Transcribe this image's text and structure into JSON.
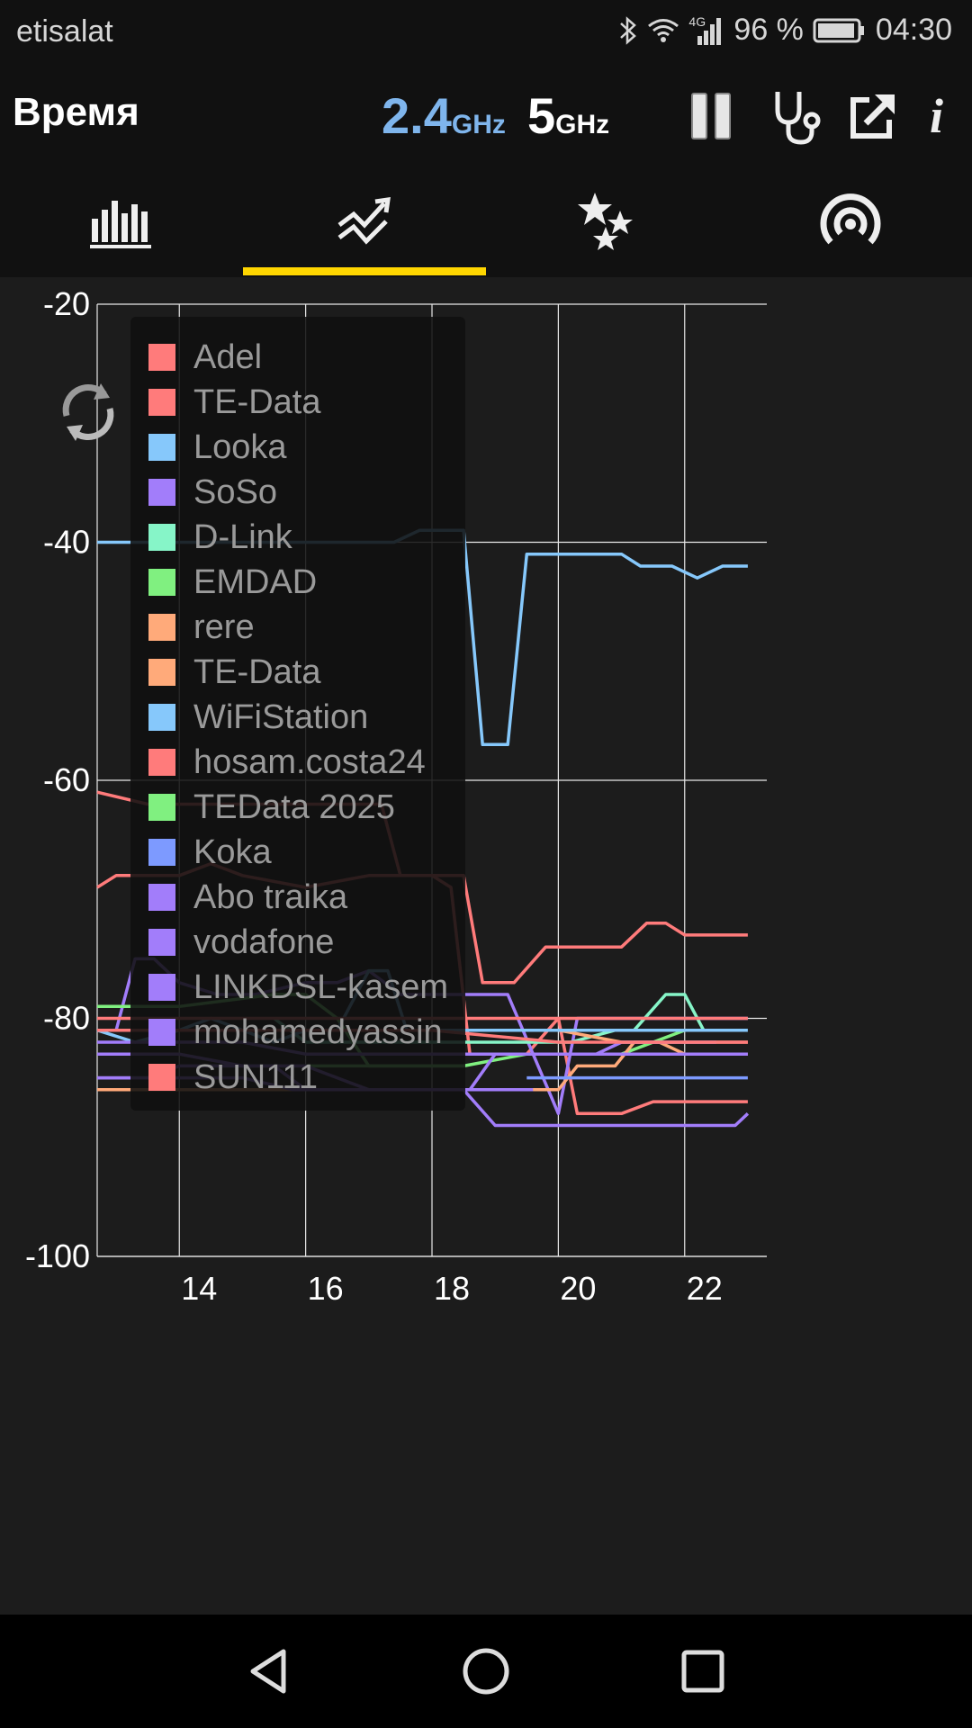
{
  "status_bar": {
    "carrier": "etisalat",
    "network": "4G",
    "battery": "96 %",
    "time": "04:30",
    "icons": [
      "bluetooth-icon",
      "wifi-icon",
      "signal-icon",
      "battery-icon"
    ]
  },
  "app_bar": {
    "title": "Время",
    "band_24_num": "2.4",
    "band_24_unit": "GHz",
    "band_5_num": "5",
    "band_5_unit": "GHz",
    "actions": [
      "pause-icon",
      "stethoscope-icon",
      "share-icon",
      "info-icon"
    ]
  },
  "tabs": [
    {
      "icon": "bar-chart-icon",
      "active": false
    },
    {
      "icon": "time-graph-icon",
      "active": true
    },
    {
      "icon": "stars-icon",
      "active": false
    },
    {
      "icon": "access-point-icon",
      "active": false
    }
  ],
  "chart_data": {
    "type": "line",
    "title": "",
    "xlabel": "",
    "ylabel": "",
    "xlim": [
      12.7,
      23.3
    ],
    "ylim": [
      -100,
      -20
    ],
    "yticks": [
      -20,
      -40,
      -60,
      -80,
      -100
    ],
    "xticks": [
      14,
      16,
      18,
      20,
      22
    ],
    "grid": true,
    "legend": "top-left",
    "series": [
      {
        "name": "Adel",
        "color": "#ff7b7b",
        "x": [
          12.7,
          13.5,
          17.2,
          17.5,
          18.5,
          18.8,
          19.3,
          19.8,
          20.7,
          21.0,
          21.4,
          21.7,
          22.0,
          22.5,
          23.0
        ],
        "y": [
          -61,
          -62,
          -62,
          -68,
          -68,
          -77,
          -77,
          -74,
          -74,
          -74,
          -72,
          -72,
          -73,
          -73,
          -73
        ]
      },
      {
        "name": "TE-Data",
        "color": "#ff7b7b",
        "x": [
          12.7,
          13.0,
          14.0,
          14.5,
          15.0,
          16.0,
          17.0,
          18.0,
          18.3,
          18.6,
          19.0,
          19.5,
          20.0,
          20.3,
          21.0,
          21.5,
          22.0,
          23.0
        ],
        "y": [
          -69,
          -68,
          -68,
          -67,
          -68,
          -69,
          -68,
          -68,
          -69,
          -83,
          -83,
          -83,
          -80,
          -88,
          -88,
          -87,
          -87,
          -87
        ]
      },
      {
        "name": "Looka",
        "color": "#86c8fb",
        "x": [
          12.7,
          14.0,
          14.6,
          17.4,
          17.8,
          18.5,
          18.8,
          19.2,
          19.5,
          20.0,
          21.0,
          21.3,
          21.8,
          22.2,
          22.6,
          23.0
        ],
        "y": [
          -40,
          -40,
          -40,
          -40,
          -39,
          -39,
          -57,
          -57,
          -41,
          -41,
          -41,
          -42,
          -42,
          -43,
          -42,
          -42
        ]
      },
      {
        "name": "SoSo",
        "color": "#a27dfa",
        "x": [
          12.7,
          13.0,
          13.3,
          13.6,
          14.0,
          14.6,
          15.2,
          16.0,
          16.5,
          17.0,
          17.5,
          18.0,
          18.5,
          18.8,
          19.2,
          19.6,
          20.0,
          20.3,
          21.0,
          22.0,
          23.0
        ],
        "y": [
          -81,
          -81,
          -75,
          -75,
          -77,
          -78,
          -78,
          -77,
          -77,
          -76,
          -78,
          -78,
          -78,
          -78,
          -78,
          -83,
          -88,
          -80,
          -80,
          -80,
          -80
        ]
      },
      {
        "name": "D-Link",
        "color": "#86f5c8",
        "x": [
          15.5,
          16.0,
          16.3,
          16.7,
          17.0,
          17.5,
          18.0,
          18.6,
          19.2,
          19.8,
          20.2,
          20.9,
          21.2,
          21.7,
          22.0,
          22.3,
          22.6
        ],
        "y": [
          -80,
          -82,
          -82,
          -82,
          -82,
          -82,
          -82,
          -82,
          -82,
          -82,
          -82,
          -81,
          -81,
          -78,
          -78,
          -81,
          -81
        ]
      },
      {
        "name": "EMDAD",
        "color": "#80f080",
        "x": [
          12.7,
          14.0,
          15.5,
          16.0,
          16.5,
          17.0,
          17.5,
          18.5,
          19.5,
          20.0,
          21.0,
          21.5,
          22.0,
          22.5
        ],
        "y": [
          -79,
          -79,
          -78,
          -78,
          -80,
          -84,
          -84,
          -84,
          -83,
          -83,
          -83,
          -82,
          -81,
          -81
        ]
      },
      {
        "name": "rere",
        "color": "#ffaa7a",
        "x": [
          12.7,
          14.0,
          15.0,
          16.0,
          17.0,
          18.0,
          19.0,
          19.7,
          20.0,
          20.3,
          20.9,
          21.2,
          21.6,
          22.0,
          22.5,
          23.0
        ],
        "y": [
          -86,
          -86,
          -86,
          -86,
          -86,
          -86,
          -86,
          -86,
          -86,
          -84,
          -84,
          -82,
          -82,
          -83,
          -83,
          -83
        ]
      },
      {
        "name": "TE-Data",
        "color": "#ffaa7a",
        "x": [
          12.7,
          15.0,
          16.0,
          17.0,
          18.0,
          19.0,
          19.7,
          20.0,
          21.0,
          22.0,
          23.0
        ],
        "y": [
          -81,
          -81,
          -81,
          -81,
          -81,
          -81,
          -81,
          -81,
          -82,
          -82,
          -82
        ]
      },
      {
        "name": "WiFiStation",
        "color": "#86c8fb",
        "x": [
          12.7,
          13.3,
          14.0,
          14.5,
          15.0,
          15.5,
          16.0,
          16.5,
          17.0,
          17.3,
          17.6,
          18.0,
          18.5,
          19.0,
          20.0,
          20.5,
          21.0,
          22.0,
          23.0
        ],
        "y": [
          -81,
          -82,
          -81,
          -80,
          -81,
          -82,
          -81,
          -81,
          -76,
          -76,
          -81,
          -81,
          -81,
          -81,
          -81,
          -81,
          -81,
          -81,
          -81
        ]
      },
      {
        "name": "hosam.costa24",
        "color": "#ff7b7b",
        "x": [
          12.7,
          15.0,
          16.0,
          17.0,
          18.0,
          19.0,
          20.0,
          21.0,
          22.0,
          23.0
        ],
        "y": [
          -80,
          -80,
          -80,
          -80,
          -80,
          -80,
          -80,
          -80,
          -80,
          -80
        ]
      },
      {
        "name": "TEData 2025",
        "color": "#80f080",
        "x": [
          14.5,
          15.5,
          16.0,
          17.0,
          18.0,
          18.5
        ],
        "y": [
          -84,
          -84,
          -84,
          -84,
          -84,
          -84
        ]
      },
      {
        "name": "Koka",
        "color": "#7d9aff",
        "x": [
          19.5,
          20.0,
          21.0,
          22.0,
          23.0
        ],
        "y": [
          -85,
          -85,
          -85,
          -85,
          -85
        ]
      },
      {
        "name": "Abo traika",
        "color": "#a27dfa",
        "x": [
          12.7,
          13.5,
          14.0,
          15.0,
          15.5,
          16.0,
          16.5,
          17.0,
          17.5,
          18.0,
          18.5,
          19.0,
          20.0,
          21.0,
          22.0,
          22.3,
          22.8,
          23.0
        ],
        "y": [
          -85,
          -85,
          -84,
          -84,
          -84,
          -86,
          -86,
          -86,
          -86,
          -86,
          -86,
          -89,
          -89,
          -89,
          -89,
          -89,
          -89,
          -88
        ]
      },
      {
        "name": "vodafone",
        "color": "#a27dfa",
        "x": [
          12.7,
          13.0,
          14.0,
          15.0,
          16.0,
          17.0,
          18.0,
          19.0,
          20.0,
          21.0,
          22.0,
          23.0
        ],
        "y": [
          -82,
          -82,
          -82,
          -82,
          -83,
          -83,
          -83,
          -83,
          -83,
          -83,
          -83,
          -83
        ]
      },
      {
        "name": "LINKDSL-kasem",
        "color": "#a27dfa",
        "x": [
          12.7,
          14.0,
          15.0,
          15.8,
          16.5,
          17.5,
          18.0,
          18.6,
          19.0,
          19.4,
          20.0,
          20.6,
          21.0,
          21.5,
          22.0,
          22.5
        ],
        "y": [
          -85,
          -85,
          -85,
          -86,
          -86,
          -86,
          -86,
          -86,
          -83,
          -83,
          -83,
          -83,
          -82,
          -82,
          -82,
          -82
        ]
      },
      {
        "name": "mohamedyassin",
        "color": "#a27dfa",
        "x": [
          12.7,
          13.5,
          14.0,
          15.0,
          16.0,
          17.0,
          18.0,
          18.6,
          19.0,
          19.6
        ],
        "y": [
          -83,
          -83,
          -83,
          -84,
          -84,
          -86,
          -86,
          -86,
          -86,
          -86
        ]
      },
      {
        "name": "SUN111",
        "color": "#ff7b7b",
        "x": [
          12.7,
          14.0,
          16.0,
          18.0,
          20.0,
          21.0,
          22.0,
          23.0
        ],
        "y": [
          -81,
          -81,
          -81,
          -81,
          -82,
          -82,
          -82,
          -82
        ]
      }
    ]
  },
  "nav_bar": [
    "back-icon",
    "home-icon",
    "recents-icon"
  ]
}
